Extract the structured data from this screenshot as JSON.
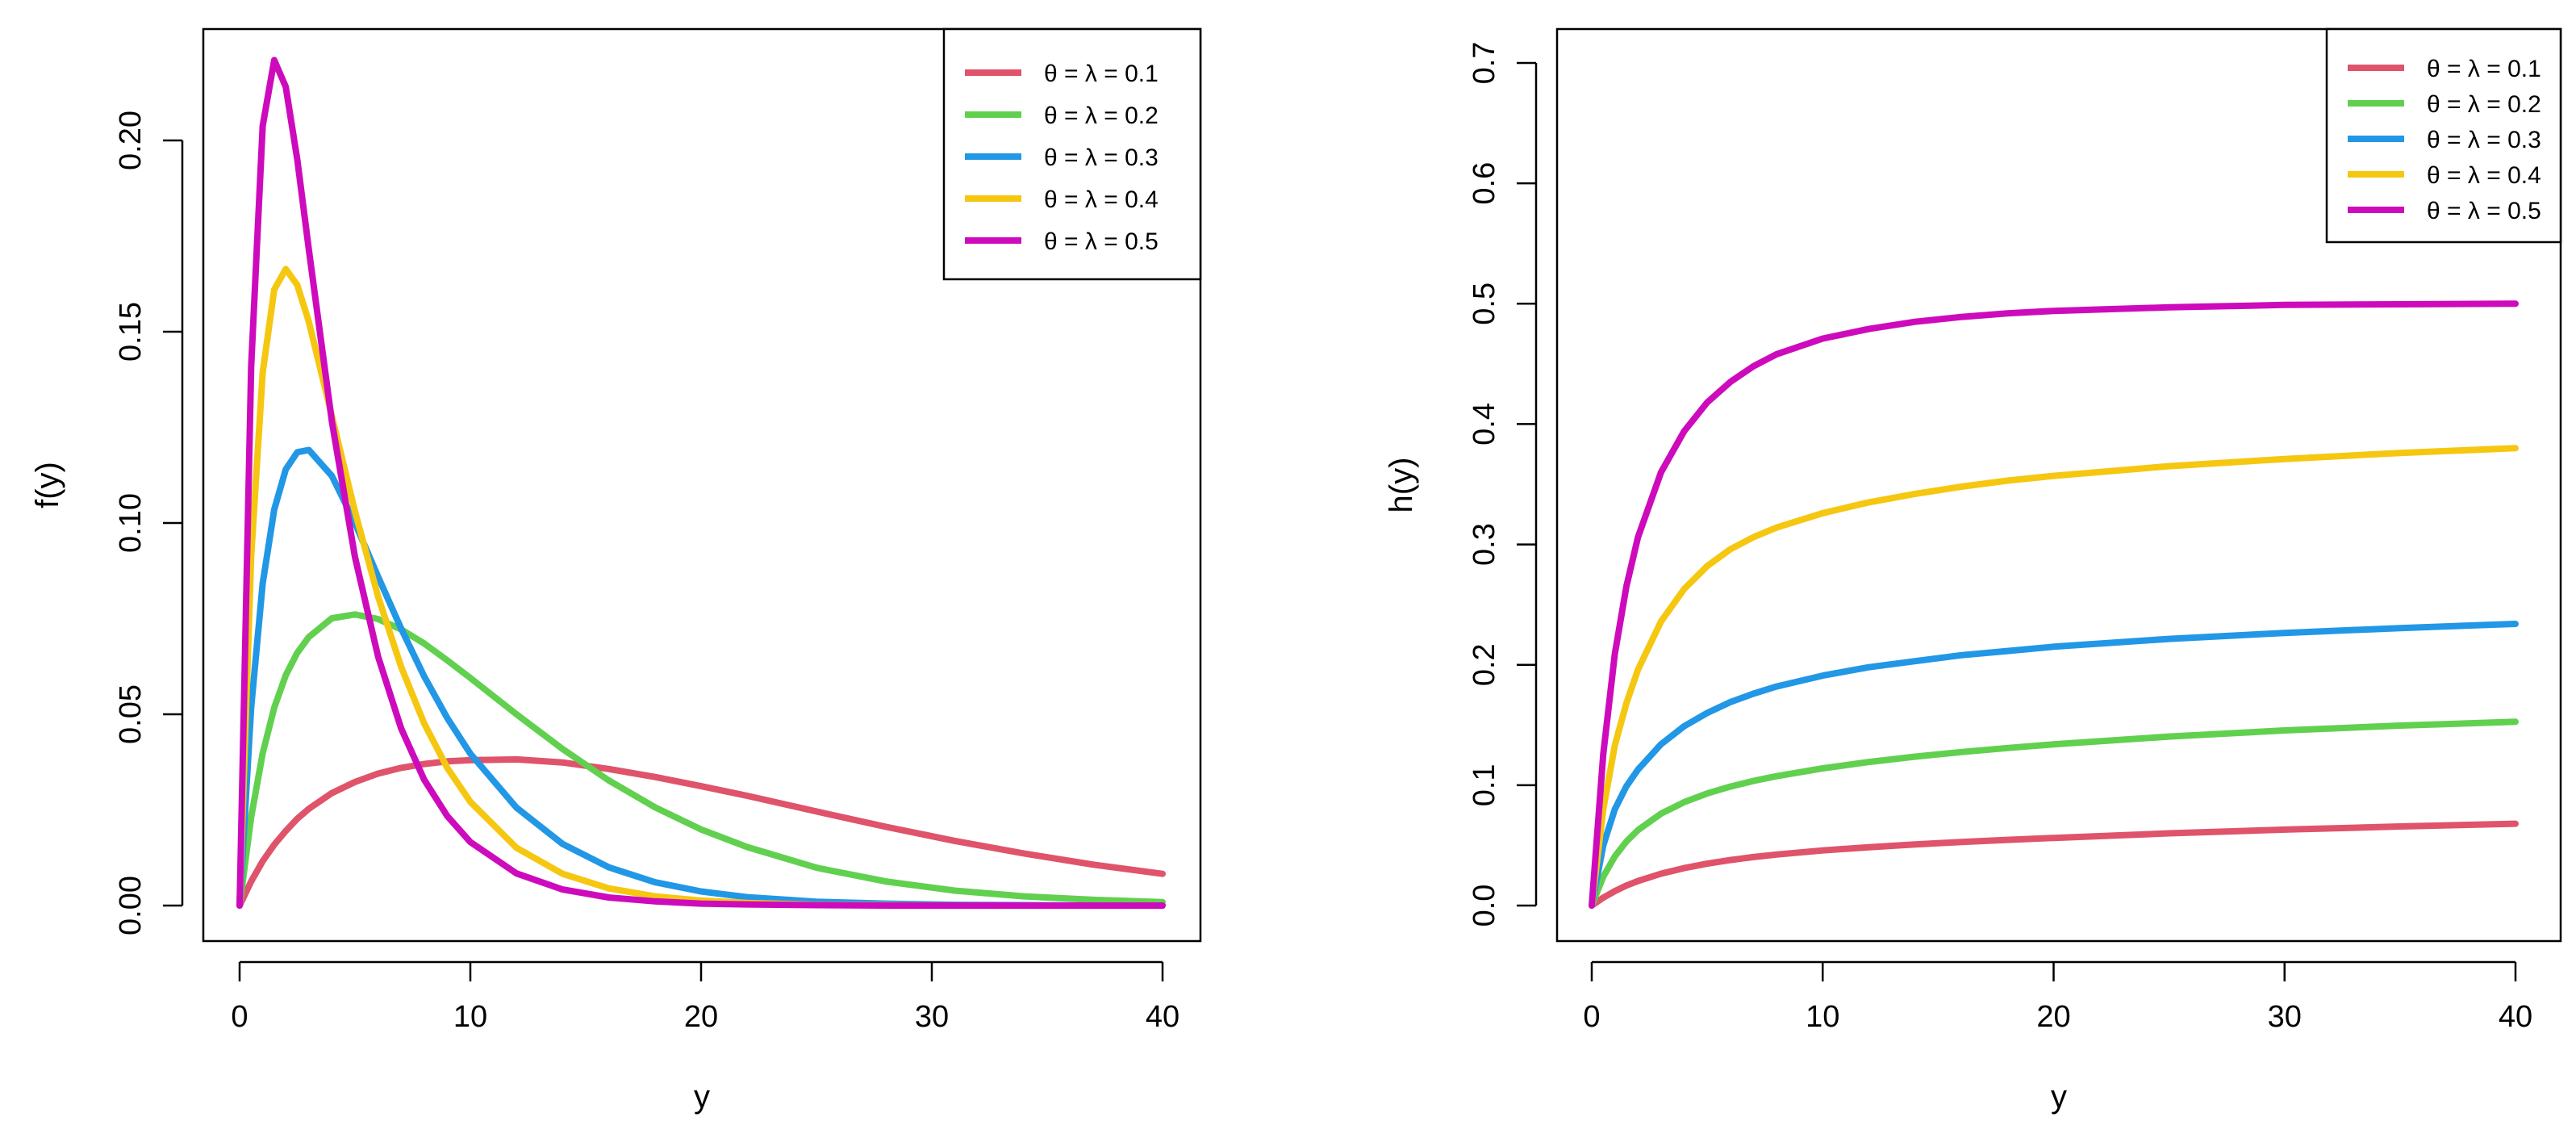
{
  "chart_data": [
    {
      "type": "line",
      "title": "",
      "xlabel": "y",
      "ylabel": "f(y)",
      "xlim": [
        0,
        40
      ],
      "ylim": [
        0,
        0.22
      ],
      "x_ticks": [
        "0",
        "10",
        "20",
        "30",
        "40"
      ],
      "y_ticks": [
        "0.00",
        "0.05",
        "0.10",
        "0.15",
        "0.20"
      ],
      "legend_position": "top-right",
      "x": [
        0,
        0.5,
        1,
        1.5,
        2,
        2.5,
        3,
        4,
        5,
        6,
        7,
        8,
        9,
        10,
        12,
        14,
        16,
        18,
        20,
        22,
        25,
        28,
        31,
        34,
        37,
        40
      ],
      "series": [
        {
          "name": "θ = λ = 0.1",
          "color": "#df536b",
          "values": [
            0,
            0.0063,
            0.0116,
            0.0159,
            0.0195,
            0.0227,
            0.0253,
            0.0294,
            0.0323,
            0.0345,
            0.036,
            0.037,
            0.0377,
            0.038,
            0.0382,
            0.0374,
            0.0357,
            0.0336,
            0.0312,
            0.0287,
            0.0246,
            0.0206,
            0.0169,
            0.0136,
            0.0107,
            0.0083
          ]
        },
        {
          "name": "θ = λ = 0.2",
          "color": "#61d04f",
          "values": [
            0,
            0.0231,
            0.0398,
            0.0517,
            0.0602,
            0.0661,
            0.0702,
            0.0751,
            0.0761,
            0.0749,
            0.0722,
            0.0685,
            0.0641,
            0.0595,
            0.05,
            0.0409,
            0.0327,
            0.0257,
            0.0199,
            0.0153,
            0.0099,
            0.0063,
            0.0039,
            0.0024,
            0.0015,
            0.0009
          ]
        },
        {
          "name": "θ = λ = 0.3",
          "color": "#2297e6",
          "values": [
            0,
            0.0517,
            0.0842,
            0.1035,
            0.114,
            0.1185,
            0.1191,
            0.1123,
            0.1,
            0.086,
            0.0724,
            0.0599,
            0.049,
            0.0397,
            0.0256,
            0.0161,
            0.01,
            0.0061,
            0.0037,
            0.0022,
            0.001,
            0.0005,
            0.0002,
            0.0001,
            0.0,
            0.0
          ]
        },
        {
          "name": "θ = λ = 0.4",
          "color": "#f5c710",
          "values": [
            0,
            0.0912,
            0.1393,
            0.161,
            0.1664,
            0.1622,
            0.1526,
            0.1279,
            0.103,
            0.0808,
            0.0624,
            0.0476,
            0.036,
            0.0271,
            0.0151,
            0.0083,
            0.0045,
            0.0024,
            0.0013,
            0.0007,
            0.0002,
            0.0001,
            0.0,
            0.0,
            0.0,
            0.0
          ]
        },
        {
          "name": "θ = λ = 0.5",
          "color": "#cd0bbc",
          "values": [
            0,
            0.1408,
            0.2038,
            0.221,
            0.214,
            0.195,
            0.1715,
            0.1265,
            0.0911,
            0.0651,
            0.0463,
            0.0329,
            0.0234,
            0.0166,
            0.0084,
            0.0042,
            0.0021,
            0.0011,
            0.0005,
            0.0003,
            0.0001,
            0.0,
            0.0,
            0.0,
            0.0,
            0.0
          ]
        }
      ]
    },
    {
      "type": "line",
      "title": "",
      "xlabel": "y",
      "ylabel": "h(y)",
      "xlim": [
        0,
        40
      ],
      "ylim": [
        0,
        0.7
      ],
      "x_ticks": [
        "0",
        "10",
        "20",
        "30",
        "40"
      ],
      "y_ticks": [
        "0.0",
        "0.1",
        "0.2",
        "0.3",
        "0.4",
        "0.5",
        "0.6",
        "0.7"
      ],
      "legend_position": "top-right",
      "x": [
        0,
        0.5,
        1,
        1.5,
        2,
        3,
        4,
        5,
        6,
        7,
        8,
        10,
        12,
        14,
        16,
        18,
        20,
        25,
        30,
        35,
        40
      ],
      "series": [
        {
          "name": "θ = λ = 0.1",
          "color": "#df536b",
          "values": [
            0,
            0.0066,
            0.012,
            0.0166,
            0.0204,
            0.0265,
            0.0311,
            0.0348,
            0.0378,
            0.0403,
            0.0424,
            0.0458,
            0.0485,
            0.0508,
            0.0528,
            0.0546,
            0.0562,
            0.06,
            0.0631,
            0.0657,
            0.068
          ]
        },
        {
          "name": "θ = λ = 0.2",
          "color": "#61d04f",
          "values": [
            0,
            0.024,
            0.0408,
            0.0532,
            0.0627,
            0.0764,
            0.0859,
            0.0931,
            0.0988,
            0.1035,
            0.1075,
            0.114,
            0.1193,
            0.1237,
            0.1275,
            0.1309,
            0.1339,
            0.1404,
            0.1455,
            0.1495,
            0.1527
          ]
        },
        {
          "name": "θ = λ = 0.3",
          "color": "#2297e6",
          "values": [
            0,
            0.05,
            0.08,
            0.099,
            0.113,
            0.134,
            0.149,
            0.16,
            0.169,
            0.176,
            0.182,
            0.191,
            0.198,
            0.203,
            0.208,
            0.2115,
            0.215,
            0.2215,
            0.2265,
            0.2305,
            0.234
          ]
        },
        {
          "name": "θ = λ = 0.4",
          "color": "#f5c710",
          "values": [
            0,
            0.08,
            0.133,
            0.168,
            0.196,
            0.236,
            0.263,
            0.282,
            0.296,
            0.306,
            0.314,
            0.326,
            0.335,
            0.342,
            0.348,
            0.353,
            0.357,
            0.365,
            0.371,
            0.376,
            0.38
          ]
        },
        {
          "name": "θ = λ = 0.5",
          "color": "#cd0bbc",
          "values": [
            0,
            0.126,
            0.209,
            0.265,
            0.306,
            0.36,
            0.394,
            0.418,
            0.435,
            0.448,
            0.458,
            0.471,
            0.479,
            0.485,
            0.489,
            0.492,
            0.494,
            0.497,
            0.499,
            0.4995,
            0.5
          ]
        }
      ]
    }
  ]
}
